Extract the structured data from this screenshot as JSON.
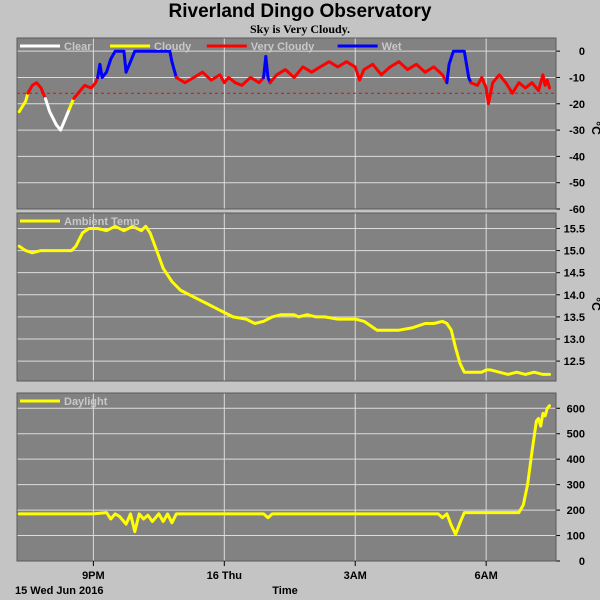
{
  "header": {
    "title": "Riverland Dingo Observatory",
    "subtitle": "Sky is Very Cloudy."
  },
  "footer": {
    "date_label": "15 Wed Jun 2016",
    "x_title": "Time"
  },
  "x_axis": {
    "ticks": [
      {
        "label": "9PM",
        "t": 21
      },
      {
        "label": "16 Thu",
        "t": 24
      },
      {
        "label": "3AM",
        "t": 27
      },
      {
        "label": "6AM",
        "t": 30
      }
    ],
    "range": [
      19.25,
      31.6
    ]
  },
  "colors": {
    "plot_bg": "#828282",
    "page_bg": "#c4c4c4",
    "grid": "#dcdcdc",
    "clear": "#ffffff",
    "cloudy": "#ffff00",
    "very_cloudy": "#ff0000",
    "wet": "#0000ff",
    "threshold": "#ff0000"
  },
  "chart_data": [
    {
      "type": "line",
      "name": "sky",
      "legend": [
        {
          "label": "Clear",
          "color": "#ffffff"
        },
        {
          "label": "Cloudy",
          "color": "#ffff00"
        },
        {
          "label": "Very Cloudy",
          "color": "#ff0000"
        },
        {
          "label": "Wet",
          "color": "#0000ff"
        }
      ],
      "ylabel": "°C",
      "ylim": [
        -60,
        5
      ],
      "yticks": [
        0,
        -10,
        -20,
        -30,
        -40,
        -50,
        -60
      ],
      "threshold": -16,
      "series": [
        {
          "color": "#ffff00",
          "points": [
            [
              19.3,
              -23
            ],
            [
              19.45,
              -19
            ],
            [
              19.5,
              -16
            ]
          ]
        },
        {
          "color": "#ff0000",
          "points": [
            [
              19.5,
              -16
            ],
            [
              19.6,
              -13
            ],
            [
              19.7,
              -12
            ],
            [
              19.8,
              -14
            ],
            [
              19.9,
              -18
            ]
          ]
        },
        {
          "color": "#ffffff",
          "points": [
            [
              19.9,
              -18
            ],
            [
              20.0,
              -23
            ],
            [
              20.15,
              -28
            ],
            [
              20.25,
              -30
            ],
            [
              20.35,
              -26
            ],
            [
              20.45,
              -22
            ]
          ]
        },
        {
          "color": "#ffff00",
          "points": [
            [
              20.45,
              -22
            ],
            [
              20.55,
              -18
            ]
          ]
        },
        {
          "color": "#ff0000",
          "points": [
            [
              20.55,
              -18
            ],
            [
              20.7,
              -15
            ],
            [
              20.8,
              -13
            ],
            [
              20.95,
              -14
            ],
            [
              21.05,
              -12
            ],
            [
              21.1,
              -10
            ]
          ]
        },
        {
          "color": "#0000ff",
          "points": [
            [
              21.1,
              -10
            ],
            [
              21.15,
              -5
            ],
            [
              21.2,
              -10
            ],
            [
              21.3,
              -8
            ],
            [
              21.4,
              -3
            ],
            [
              21.5,
              0
            ],
            [
              21.7,
              0
            ],
            [
              21.75,
              -8
            ],
            [
              21.85,
              -4
            ],
            [
              21.95,
              0
            ],
            [
              22.4,
              0
            ],
            [
              22.75,
              0
            ],
            [
              22.8,
              -4
            ],
            [
              22.9,
              -10
            ]
          ]
        },
        {
          "color": "#ff0000",
          "points": [
            [
              22.9,
              -10
            ],
            [
              23.1,
              -12
            ],
            [
              23.3,
              -10
            ],
            [
              23.5,
              -8
            ],
            [
              23.7,
              -11
            ],
            [
              23.9,
              -9
            ],
            [
              24.0,
              -12
            ],
            [
              24.1,
              -10
            ],
            [
              24.25,
              -12
            ],
            [
              24.4,
              -13
            ],
            [
              24.6,
              -10
            ],
            [
              24.8,
              -12
            ],
            [
              24.9,
              -10
            ]
          ]
        },
        {
          "color": "#0000ff",
          "points": [
            [
              24.9,
              -10
            ],
            [
              24.95,
              -2
            ],
            [
              25.0,
              -10
            ],
            [
              25.05,
              -12
            ]
          ]
        },
        {
          "color": "#ff0000",
          "points": [
            [
              25.05,
              -12
            ],
            [
              25.2,
              -9
            ],
            [
              25.4,
              -7
            ],
            [
              25.6,
              -10
            ],
            [
              25.8,
              -6
            ],
            [
              26.0,
              -8
            ],
            [
              26.2,
              -6
            ],
            [
              26.4,
              -4
            ],
            [
              26.6,
              -6
            ],
            [
              26.8,
              -4
            ],
            [
              27.0,
              -6
            ],
            [
              27.1,
              -11
            ],
            [
              27.2,
              -7
            ],
            [
              27.4,
              -5
            ],
            [
              27.6,
              -9
            ],
            [
              27.8,
              -6
            ],
            [
              28.0,
              -4
            ],
            [
              28.2,
              -7
            ],
            [
              28.4,
              -5
            ],
            [
              28.6,
              -8
            ],
            [
              28.8,
              -6
            ],
            [
              29.0,
              -9
            ],
            [
              29.1,
              -12
            ]
          ]
        },
        {
          "color": "#0000ff",
          "points": [
            [
              29.1,
              -12
            ],
            [
              29.15,
              -5
            ],
            [
              29.25,
              0
            ],
            [
              29.5,
              0
            ],
            [
              29.55,
              -5
            ],
            [
              29.6,
              -10
            ],
            [
              29.65,
              -12
            ]
          ]
        },
        {
          "color": "#ff0000",
          "points": [
            [
              29.65,
              -12
            ],
            [
              29.8,
              -13
            ],
            [
              29.9,
              -10
            ],
            [
              30.0,
              -14
            ],
            [
              30.05,
              -20
            ],
            [
              30.15,
              -12
            ],
            [
              30.3,
              -9
            ],
            [
              30.45,
              -12
            ],
            [
              30.6,
              -16
            ],
            [
              30.75,
              -12
            ],
            [
              30.9,
              -14
            ],
            [
              31.05,
              -12
            ],
            [
              31.2,
              -15
            ],
            [
              31.3,
              -9
            ],
            [
              31.35,
              -13
            ],
            [
              31.4,
              -11
            ],
            [
              31.45,
              -14
            ]
          ]
        }
      ]
    },
    {
      "type": "line",
      "name": "ambient",
      "legend": [
        {
          "label": "Ambient Temp",
          "color": "#ffff00"
        }
      ],
      "ylabel": "°C",
      "ylim": [
        12.05,
        15.85
      ],
      "yticks": [
        15.5,
        15.0,
        14.5,
        14.0,
        13.5,
        13.0,
        12.5
      ],
      "series": [
        {
          "color": "#ffff00",
          "points": [
            [
              19.3,
              15.1
            ],
            [
              19.45,
              15.0
            ],
            [
              19.6,
              14.95
            ],
            [
              19.8,
              15.0
            ],
            [
              20.2,
              15.0
            ],
            [
              20.5,
              15.0
            ],
            [
              20.6,
              15.1
            ],
            [
              20.75,
              15.4
            ],
            [
              20.9,
              15.5
            ],
            [
              21.1,
              15.5
            ],
            [
              21.3,
              15.45
            ],
            [
              21.5,
              15.55
            ],
            [
              21.7,
              15.45
            ],
            [
              21.9,
              15.55
            ],
            [
              22.1,
              15.45
            ],
            [
              22.2,
              15.55
            ],
            [
              22.3,
              15.4
            ],
            [
              22.45,
              15.0
            ],
            [
              22.6,
              14.6
            ],
            [
              22.8,
              14.3
            ],
            [
              23.0,
              14.1
            ],
            [
              23.2,
              14.0
            ],
            [
              23.4,
              13.9
            ],
            [
              23.6,
              13.8
            ],
            [
              23.8,
              13.7
            ],
            [
              24.0,
              13.6
            ],
            [
              24.2,
              13.5
            ],
            [
              24.5,
              13.45
            ],
            [
              24.7,
              13.35
            ],
            [
              24.9,
              13.4
            ],
            [
              25.1,
              13.5
            ],
            [
              25.3,
              13.55
            ],
            [
              25.6,
              13.55
            ],
            [
              25.7,
              13.5
            ],
            [
              25.9,
              13.55
            ],
            [
              26.1,
              13.5
            ],
            [
              26.3,
              13.5
            ],
            [
              26.6,
              13.45
            ],
            [
              27.0,
              13.45
            ],
            [
              27.2,
              13.4
            ],
            [
              27.35,
              13.3
            ],
            [
              27.5,
              13.2
            ],
            [
              28.0,
              13.2
            ],
            [
              28.3,
              13.25
            ],
            [
              28.6,
              13.35
            ],
            [
              28.8,
              13.35
            ],
            [
              29.0,
              13.4
            ],
            [
              29.1,
              13.35
            ],
            [
              29.2,
              13.2
            ],
            [
              29.3,
              12.8
            ],
            [
              29.4,
              12.45
            ],
            [
              29.5,
              12.25
            ],
            [
              29.7,
              12.25
            ],
            [
              29.9,
              12.25
            ],
            [
              30.0,
              12.3
            ],
            [
              30.1,
              12.3
            ],
            [
              30.3,
              12.25
            ],
            [
              30.5,
              12.2
            ],
            [
              30.7,
              12.25
            ],
            [
              30.9,
              12.2
            ],
            [
              31.1,
              12.25
            ],
            [
              31.3,
              12.2
            ],
            [
              31.45,
              12.2
            ]
          ]
        }
      ]
    },
    {
      "type": "line",
      "name": "daylight",
      "legend": [
        {
          "label": "Daylight",
          "color": "#ffff00"
        }
      ],
      "ylabel": "",
      "ylim": [
        0,
        660
      ],
      "yticks": [
        600,
        500,
        400,
        300,
        200,
        100,
        0
      ],
      "series": [
        {
          "color": "#ffff00",
          "points": [
            [
              19.3,
              185
            ],
            [
              20.0,
              185
            ],
            [
              20.5,
              185
            ],
            [
              21.0,
              185
            ],
            [
              21.3,
              190
            ],
            [
              21.4,
              165
            ],
            [
              21.5,
              185
            ],
            [
              21.6,
              175
            ],
            [
              21.75,
              145
            ],
            [
              21.85,
              185
            ],
            [
              21.95,
              115
            ],
            [
              22.05,
              185
            ],
            [
              22.15,
              165
            ],
            [
              22.25,
              180
            ],
            [
              22.35,
              155
            ],
            [
              22.5,
              185
            ],
            [
              22.6,
              155
            ],
            [
              22.7,
              185
            ],
            [
              22.8,
              150
            ],
            [
              22.9,
              185
            ],
            [
              23.5,
              185
            ],
            [
              24.0,
              185
            ],
            [
              24.5,
              185
            ],
            [
              24.9,
              185
            ],
            [
              25.0,
              170
            ],
            [
              25.1,
              185
            ],
            [
              25.5,
              185
            ],
            [
              26.0,
              185
            ],
            [
              26.5,
              185
            ],
            [
              27.0,
              185
            ],
            [
              27.5,
              185
            ],
            [
              28.0,
              185
            ],
            [
              28.5,
              185
            ],
            [
              28.9,
              185
            ],
            [
              29.0,
              170
            ],
            [
              29.1,
              185
            ],
            [
              29.2,
              140
            ],
            [
              29.3,
              105
            ],
            [
              29.4,
              150
            ],
            [
              29.5,
              190
            ],
            [
              29.7,
              190
            ],
            [
              30.0,
              190
            ],
            [
              30.5,
              190
            ],
            [
              30.75,
              190
            ],
            [
              30.85,
              220
            ],
            [
              30.95,
              300
            ],
            [
              31.05,
              430
            ],
            [
              31.15,
              550
            ],
            [
              31.2,
              560
            ],
            [
              31.25,
              530
            ],
            [
              31.3,
              580
            ],
            [
              31.35,
              570
            ],
            [
              31.4,
              600
            ],
            [
              31.45,
              610
            ]
          ]
        }
      ]
    }
  ]
}
